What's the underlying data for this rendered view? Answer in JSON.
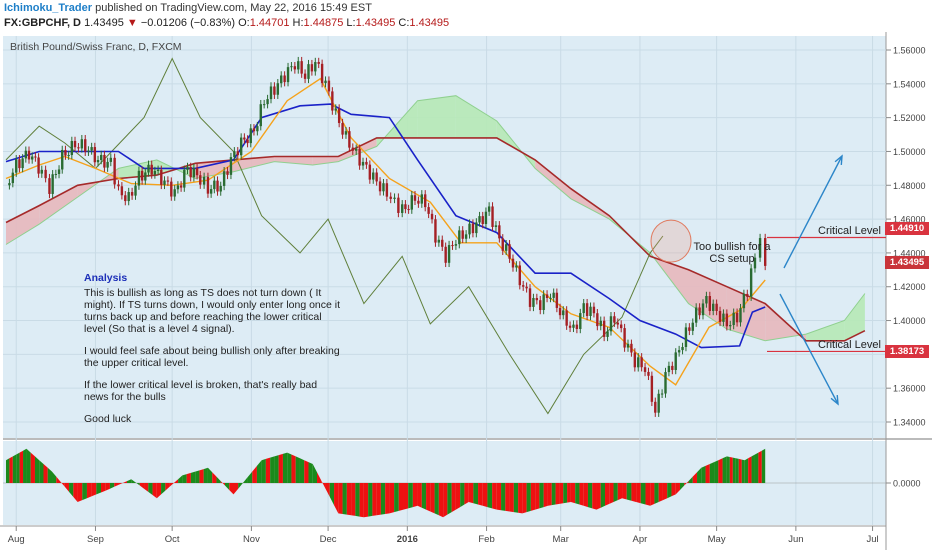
{
  "header": {
    "author": "Ichimoku_Trader",
    "published_text": "published on TradingView.com, May 22, 2016 15:49 EST",
    "symbol": "FX:GBPCHF, D",
    "price": "1.43495",
    "change_arrow": "▼",
    "change": "−0.01206 (−0.83%)",
    "o_label": "O:",
    "o_value": "1.44701",
    "h_label": "H:",
    "h_value": "1.44875",
    "l_label": "L:",
    "l_value": "1.43495",
    "c_label": "C:",
    "c_value": "1.43495"
  },
  "chart_title": "British Pound/Swiss Franc, D, FXCM",
  "analysis": {
    "title": "Analysis",
    "p1": "This is bullish as long as TS does not turn down ( It might). If TS turns down, I would only enter long once it turns back up and before reaching the lower critical level (So that is a level 4 signal).",
    "p2": "I would feel safe about being bullish only after breaking the upper critical level.",
    "p3": "If the lower critical level is broken, that's really bad news for the bulls",
    "p4": "Good luck"
  },
  "annotations": {
    "too_bullish": "Too bullish for a CS setup",
    "critical_upper": "Critical Level",
    "critical_lower": "Critical Level"
  },
  "price_labels": {
    "upper": "1.44910",
    "last": "1.43495",
    "lower": "1.38173"
  },
  "colors": {
    "bull_candle": "#2a6b32",
    "bear_candle": "#a51f24",
    "tenkan": "#f5a21b",
    "kijun": "#1a22c8",
    "chikou": "#5f7f3a",
    "cloud_bull": "#b6e9b6",
    "cloud_bear": "#e7b8bd",
    "senkou_b": "#a52a2a",
    "critical_line": "#d9333f",
    "arrow": "#2c86c9",
    "osc_pos": "#1b8a1b",
    "osc_neg": "#ee1111"
  },
  "chart_data": {
    "type": "candlestick",
    "symbol": "GBPCHF",
    "timeframe": "D",
    "y_ticks": [
      "1.56000",
      "1.54000",
      "1.52000",
      "1.50000",
      "1.48000",
      "1.46000",
      "1.44000",
      "1.42000",
      "1.40000",
      "1.38000",
      "1.36000",
      "1.34000"
    ],
    "y_range": [
      1.335,
      1.57
    ],
    "x_ticks": [
      "Aug",
      "Sep",
      "Oct",
      "Nov",
      "Dec",
      "2016",
      "Feb",
      "Mar",
      "Apr",
      "May",
      "Jun",
      "Jul"
    ],
    "critical_levels": [
      1.4491,
      1.38173
    ],
    "last_price": 1.43495,
    "close_path": [
      [
        "2015-07-28",
        1.48
      ],
      [
        "2015-08-01",
        1.492
      ],
      [
        "2015-08-06",
        1.499
      ],
      [
        "2015-08-11",
        1.488
      ],
      [
        "2015-08-14",
        1.478
      ],
      [
        "2015-08-19",
        1.497
      ],
      [
        "2015-08-24",
        1.504
      ],
      [
        "2015-08-28",
        1.503
      ],
      [
        "2015-09-02",
        1.495
      ],
      [
        "2015-09-07",
        1.493
      ],
      [
        "2015-09-10",
        1.476
      ],
      [
        "2015-09-14",
        1.472
      ],
      [
        "2015-09-18",
        1.485
      ],
      [
        "2015-09-23",
        1.49
      ],
      [
        "2015-09-28",
        1.482
      ],
      [
        "2015-10-02",
        1.475
      ],
      [
        "2015-10-07",
        1.49
      ],
      [
        "2015-10-12",
        1.484
      ],
      [
        "2015-10-15",
        1.478
      ],
      [
        "2015-10-20",
        1.48
      ],
      [
        "2015-10-24",
        1.495
      ],
      [
        "2015-10-28",
        1.505
      ],
      [
        "2015-11-02",
        1.512
      ],
      [
        "2015-11-06",
        1.53
      ],
      [
        "2015-11-10",
        1.537
      ],
      [
        "2015-11-14",
        1.545
      ],
      [
        "2015-11-18",
        1.552
      ],
      [
        "2015-11-22",
        1.545
      ],
      [
        "2015-11-26",
        1.553
      ],
      [
        "2015-11-30",
        1.54
      ],
      [
        "2015-12-04",
        1.522
      ],
      [
        "2015-12-08",
        1.508
      ],
      [
        "2015-12-12",
        1.498
      ],
      [
        "2015-12-16",
        1.49
      ],
      [
        "2015-12-20",
        1.482
      ],
      [
        "2015-12-24",
        1.475
      ],
      [
        "2015-12-30",
        1.465
      ],
      [
        "2016-01-04",
        1.472
      ],
      [
        "2016-01-08",
        1.47
      ],
      [
        "2016-01-12",
        1.45
      ],
      [
        "2016-01-16",
        1.438
      ],
      [
        "2016-01-20",
        1.448
      ],
      [
        "2016-01-24",
        1.452
      ],
      [
        "2016-01-28",
        1.457
      ],
      [
        "2016-02-02",
        1.465
      ],
      [
        "2016-02-06",
        1.448
      ],
      [
        "2016-02-10",
        1.438
      ],
      [
        "2016-02-14",
        1.424
      ],
      [
        "2016-02-18",
        1.412
      ],
      [
        "2016-02-22",
        1.41
      ],
      [
        "2016-02-26",
        1.416
      ],
      [
        "2016-03-02",
        1.402
      ],
      [
        "2016-03-06",
        1.394
      ],
      [
        "2016-03-10",
        1.408
      ],
      [
        "2016-03-14",
        1.404
      ],
      [
        "2016-03-18",
        1.392
      ],
      [
        "2016-03-22",
        1.402
      ],
      [
        "2016-03-26",
        1.388
      ],
      [
        "2016-03-30",
        1.376
      ],
      [
        "2016-04-03",
        1.372
      ],
      [
        "2016-04-07",
        1.346
      ],
      [
        "2016-04-11",
        1.368
      ],
      [
        "2016-04-15",
        1.378
      ],
      [
        "2016-04-19",
        1.392
      ],
      [
        "2016-04-23",
        1.404
      ],
      [
        "2016-04-27",
        1.412
      ],
      [
        "2016-05-01",
        1.405
      ],
      [
        "2016-05-05",
        1.398
      ],
      [
        "2016-05-09",
        1.402
      ],
      [
        "2016-05-13",
        1.418
      ],
      [
        "2016-05-16",
        1.438
      ],
      [
        "2016-05-18",
        1.447
      ],
      [
        "2016-05-20",
        1.43495
      ]
    ],
    "tenkan_sen": [
      [
        "2015-07-28",
        1.484
      ],
      [
        "2015-08-10",
        1.492
      ],
      [
        "2015-08-20",
        1.497
      ],
      [
        "2015-09-01",
        1.49
      ],
      [
        "2015-09-15",
        1.481
      ],
      [
        "2015-10-01",
        1.48
      ],
      [
        "2015-10-15",
        1.483
      ],
      [
        "2015-11-01",
        1.5
      ],
      [
        "2015-11-15",
        1.53
      ],
      [
        "2015-11-28",
        1.543
      ],
      [
        "2015-12-10",
        1.508
      ],
      [
        "2015-12-25",
        1.484
      ],
      [
        "2016-01-10",
        1.47
      ],
      [
        "2016-01-22",
        1.446
      ],
      [
        "2016-02-05",
        1.446
      ],
      [
        "2016-02-20",
        1.42
      ],
      [
        "2016-03-05",
        1.404
      ],
      [
        "2016-03-20",
        1.396
      ],
      [
        "2016-04-05",
        1.373
      ],
      [
        "2016-04-15",
        1.362
      ],
      [
        "2016-04-28",
        1.396
      ],
      [
        "2016-05-10",
        1.406
      ],
      [
        "2016-05-20",
        1.424
      ]
    ],
    "kijun_sen": [
      [
        "2015-07-28",
        1.494
      ],
      [
        "2015-08-10",
        1.5
      ],
      [
        "2015-09-10",
        1.5
      ],
      [
        "2015-09-20",
        1.49
      ],
      [
        "2015-10-10",
        1.49
      ],
      [
        "2015-10-25",
        1.495
      ],
      [
        "2015-11-05",
        1.52
      ],
      [
        "2015-11-20",
        1.527
      ],
      [
        "2015-12-02",
        1.528
      ],
      [
        "2015-12-10",
        1.522
      ],
      [
        "2015-12-25",
        1.52
      ],
      [
        "2016-01-05",
        1.495
      ],
      [
        "2016-01-20",
        1.462
      ],
      [
        "2016-02-05",
        1.452
      ],
      [
        "2016-02-20",
        1.428
      ],
      [
        "2016-03-05",
        1.428
      ],
      [
        "2016-03-20",
        1.413
      ],
      [
        "2016-04-01",
        1.4
      ],
      [
        "2016-04-15",
        1.392
      ],
      [
        "2016-04-25",
        1.384
      ],
      [
        "2016-05-10",
        1.385
      ],
      [
        "2016-05-15",
        1.405
      ],
      [
        "2016-05-20",
        1.408
      ]
    ],
    "chikou_span": [
      [
        "2015-07-28",
        1.495
      ],
      [
        "2015-08-10",
        1.515
      ],
      [
        "2015-08-20",
        1.505
      ],
      [
        "2015-09-01",
        1.49
      ],
      [
        "2015-09-20",
        1.52
      ],
      [
        "2015-10-01",
        1.555
      ],
      [
        "2015-10-12",
        1.52
      ],
      [
        "2015-10-25",
        1.5
      ],
      [
        "2015-11-05",
        1.462
      ],
      [
        "2015-11-20",
        1.44
      ],
      [
        "2015-12-01",
        1.46
      ],
      [
        "2015-12-15",
        1.41
      ],
      [
        "2015-12-30",
        1.438
      ],
      [
        "2016-01-10",
        1.398
      ],
      [
        "2016-01-25",
        1.42
      ],
      [
        "2016-02-10",
        1.38
      ],
      [
        "2016-02-25",
        1.345
      ],
      [
        "2016-03-10",
        1.38
      ],
      [
        "2016-03-25",
        1.402
      ],
      [
        "2016-04-05",
        1.44
      ],
      [
        "2016-04-10",
        1.45
      ]
    ],
    "senkou_span_a": [
      [
        "2015-07-28",
        1.445
      ],
      [
        "2015-08-10",
        1.457
      ],
      [
        "2015-08-25",
        1.473
      ],
      [
        "2015-09-10",
        1.49
      ],
      [
        "2015-09-25",
        1.495
      ],
      [
        "2015-10-10",
        1.484
      ],
      [
        "2015-10-25",
        1.488
      ],
      [
        "2015-11-10",
        1.494
      ],
      [
        "2015-11-25",
        1.492
      ],
      [
        "2015-12-05",
        1.494
      ],
      [
        "2015-12-20",
        1.503
      ],
      [
        "2016-01-05",
        1.53
      ],
      [
        "2016-01-20",
        1.533
      ],
      [
        "2016-02-05",
        1.518
      ],
      [
        "2016-02-20",
        1.49
      ],
      [
        "2016-03-05",
        1.472
      ],
      [
        "2016-03-20",
        1.46
      ],
      [
        "2016-04-05",
        1.44
      ],
      [
        "2016-04-20",
        1.41
      ],
      [
        "2016-05-05",
        1.395
      ],
      [
        "2016-05-20",
        1.388
      ],
      [
        "2016-06-05",
        1.392
      ],
      [
        "2016-06-20",
        1.4
      ],
      [
        "2016-06-28",
        1.416
      ]
    ],
    "senkou_span_b": [
      [
        "2015-07-28",
        1.458
      ],
      [
        "2015-08-10",
        1.468
      ],
      [
        "2015-08-25",
        1.48
      ],
      [
        "2015-09-10",
        1.484
      ],
      [
        "2015-09-25",
        1.486
      ],
      [
        "2015-10-10",
        1.493
      ],
      [
        "2015-10-25",
        1.495
      ],
      [
        "2015-11-10",
        1.497
      ],
      [
        "2015-11-25",
        1.497
      ],
      [
        "2015-12-05",
        1.497
      ],
      [
        "2015-12-20",
        1.508
      ],
      [
        "2016-01-05",
        1.508
      ],
      [
        "2016-01-20",
        1.508
      ],
      [
        "2016-02-05",
        1.508
      ],
      [
        "2016-02-20",
        1.495
      ],
      [
        "2016-03-05",
        1.478
      ],
      [
        "2016-03-20",
        1.462
      ],
      [
        "2016-04-05",
        1.438
      ],
      [
        "2016-04-20",
        1.43
      ],
      [
        "2016-05-05",
        1.42
      ],
      [
        "2016-05-20",
        1.41
      ],
      [
        "2016-06-05",
        1.388
      ],
      [
        "2016-06-20",
        1.388
      ],
      [
        "2016-06-28",
        1.394
      ]
    ],
    "oscillator": {
      "zero_label": "0.0000",
      "values": [
        [
          "2015-07-28",
          0.6
        ],
        [
          "2015-08-05",
          0.9
        ],
        [
          "2015-08-15",
          0.3
        ],
        [
          "2015-08-25",
          -0.5
        ],
        [
          "2015-09-05",
          -0.2
        ],
        [
          "2015-09-15",
          0.1
        ],
        [
          "2015-09-25",
          -0.4
        ],
        [
          "2015-10-05",
          0.2
        ],
        [
          "2015-10-15",
          0.4
        ],
        [
          "2015-10-25",
          -0.3
        ],
        [
          "2015-11-05",
          0.6
        ],
        [
          "2015-11-15",
          0.8
        ],
        [
          "2015-11-25",
          0.5
        ],
        [
          "2015-12-05",
          -0.8
        ],
        [
          "2015-12-15",
          -0.9
        ],
        [
          "2015-12-25",
          -0.8
        ],
        [
          "2016-01-05",
          -0.6
        ],
        [
          "2016-01-15",
          -0.9
        ],
        [
          "2016-01-25",
          -0.5
        ],
        [
          "2016-02-05",
          -0.7
        ],
        [
          "2016-02-15",
          -0.8
        ],
        [
          "2016-02-25",
          -0.6
        ],
        [
          "2016-03-05",
          -0.5
        ],
        [
          "2016-03-15",
          -0.7
        ],
        [
          "2016-03-25",
          -0.4
        ],
        [
          "2016-04-05",
          -0.6
        ],
        [
          "2016-04-15",
          -0.3
        ],
        [
          "2016-04-25",
          0.4
        ],
        [
          "2016-05-05",
          0.7
        ],
        [
          "2016-05-12",
          0.6
        ],
        [
          "2016-05-20",
          0.9
        ]
      ]
    }
  }
}
